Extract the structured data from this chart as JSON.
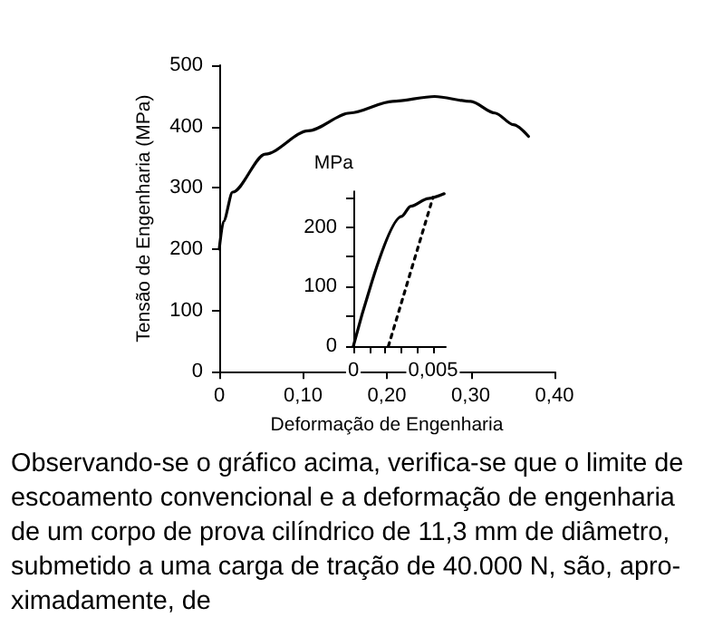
{
  "chart_data": [
    {
      "type": "line",
      "xlabel": "Deformação de Engenharia",
      "ylabel": "Tensão de Engenharia (MPa)",
      "xlim": [
        0,
        0.4
      ],
      "ylim": [
        0,
        500
      ],
      "xticks": [
        {
          "value": 0,
          "label": "0"
        },
        {
          "value": 0.1,
          "label": "0,10"
        },
        {
          "value": 0.2,
          "label": "0,20"
        },
        {
          "value": 0.3,
          "label": "0,30"
        },
        {
          "value": 0.4,
          "label": "0,40"
        }
      ],
      "yticks": [
        0,
        100,
        200,
        300,
        400,
        500
      ],
      "grid": false,
      "marker": "none",
      "line_style": "solid",
      "series": [
        {
          "color": "#000000",
          "x": [
            0,
            0.005,
            0.016,
            0.055,
            0.106,
            0.156,
            0.207,
            0.257,
            0.3,
            0.329,
            0.351,
            0.369
          ],
          "values": [
            200,
            245,
            293,
            355,
            393,
            422,
            441,
            449,
            441,
            422,
            403,
            384
          ]
        }
      ],
      "annotations": [
        "Observando-se o gráfico acima, verifica-se que o limite de\nescoamento convencional e a deformação de engenharia\nde um corpo de prova cilíndrico de 11,3 mm de diâmetro,\nsubmetido a uma carga de tração de 40.000 N, são, apro-\nximadamente, de"
      ]
    },
    {
      "type": "line",
      "ylabel": "MPa",
      "xlim": [
        0,
        0.0058
      ],
      "ylim": [
        0,
        260
      ],
      "xticks": [
        {
          "value": 0,
          "label": "0"
        },
        {
          "value": 0.001,
          "label": null
        },
        {
          "value": 0.002,
          "label": null
        },
        {
          "value": 0.003,
          "label": null
        },
        {
          "value": 0.004,
          "label": null
        },
        {
          "value": 0.005,
          "label": "0,005"
        }
      ],
      "yticks": [
        0,
        {
          "value": 50,
          "label": null
        },
        100,
        {
          "value": 150,
          "label": null
        },
        200,
        {
          "value": 250,
          "label": null
        }
      ],
      "grid": false,
      "marker": "none",
      "series": [
        {
          "color": "#000000",
          "line_style": "solid",
          "x": [
            0,
            0.00303,
            0.0036,
            0.0047,
            0.0057
          ],
          "values": [
            0,
            218,
            235,
            248,
            256
          ]
        },
        {
          "color": "#000000",
          "line_style": "dotted",
          "x": [
            0.0022,
            0.005
          ],
          "values": [
            0,
            250
          ]
        }
      ]
    }
  ]
}
